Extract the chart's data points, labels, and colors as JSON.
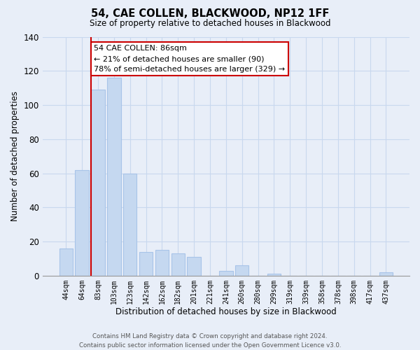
{
  "title": "54, CAE COLLEN, BLACKWOOD, NP12 1FF",
  "subtitle": "Size of property relative to detached houses in Blackwood",
  "xlabel": "Distribution of detached houses by size in Blackwood",
  "ylabel": "Number of detached properties",
  "footer_line1": "Contains HM Land Registry data © Crown copyright and database right 2024.",
  "footer_line2": "Contains public sector information licensed under the Open Government Licence v3.0.",
  "bin_labels": [
    "44sqm",
    "64sqm",
    "83sqm",
    "103sqm",
    "123sqm",
    "142sqm",
    "162sqm",
    "182sqm",
    "201sqm",
    "221sqm",
    "241sqm",
    "260sqm",
    "280sqm",
    "299sqm",
    "319sqm",
    "339sqm",
    "358sqm",
    "378sqm",
    "398sqm",
    "417sqm",
    "437sqm"
  ],
  "bar_values": [
    16,
    62,
    109,
    116,
    60,
    14,
    15,
    13,
    11,
    0,
    3,
    6,
    0,
    1,
    0,
    0,
    0,
    0,
    0,
    0,
    2
  ],
  "highlight_bar_index": 2,
  "bar_color": "#c5d8f0",
  "bar_edge_color": "#a8c4e8",
  "highlight_color": "#cc0000",
  "annotation_line1": "54 CAE COLLEN: 86sqm",
  "annotation_line2": "← 21% of detached houses are smaller (90)",
  "annotation_line3": "78% of semi-detached houses are larger (329) →",
  "annotation_box_color": "#ffffff",
  "annotation_box_edge": "#cc0000",
  "ylim": [
    0,
    140
  ],
  "yticks": [
    0,
    20,
    40,
    60,
    80,
    100,
    120,
    140
  ],
  "grid_color": "#c8d8ee",
  "background_color": "#e8eef8"
}
